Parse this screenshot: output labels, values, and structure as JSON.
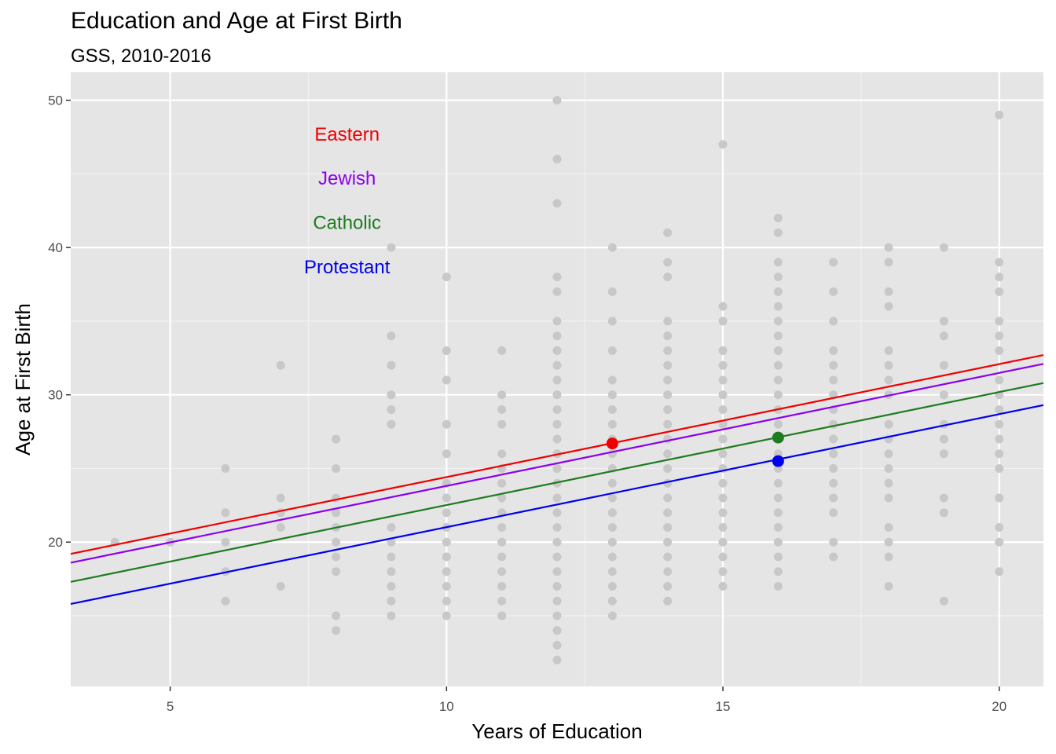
{
  "chart_data": {
    "type": "scatter",
    "title": "Education and Age at First Birth",
    "subtitle": "GSS, 2010-2016",
    "xlabel": "Years of Education",
    "ylabel": "Age at First Birth",
    "xlim": [
      3.2,
      20.8
    ],
    "ylim": [
      10.2,
      51.9
    ],
    "x_ticks": [
      5,
      10,
      15,
      20
    ],
    "y_ticks": [
      20,
      30,
      40,
      50
    ],
    "grid": true,
    "points": {
      "color": "#c8c8c8",
      "data": [
        {
          "x": 4,
          "y": [
            20
          ]
        },
        {
          "x": 5,
          "y": [
            20
          ]
        },
        {
          "x": 6,
          "y": [
            16,
            18,
            20,
            22,
            25
          ]
        },
        {
          "x": 7,
          "y": [
            17,
            21,
            22,
            23,
            32
          ]
        },
        {
          "x": 8,
          "y": [
            14,
            15,
            18,
            19,
            20,
            21,
            22,
            23,
            25,
            27
          ]
        },
        {
          "x": 9,
          "y": [
            15,
            16,
            17,
            18,
            19,
            20,
            21,
            28,
            29,
            30,
            32,
            34,
            40
          ]
        },
        {
          "x": 10,
          "y": [
            15,
            16,
            17,
            18,
            19,
            20,
            21,
            22,
            23,
            24,
            26,
            28,
            31,
            33,
            38
          ]
        },
        {
          "x": 11,
          "y": [
            15,
            16,
            17,
            18,
            19,
            20,
            21,
            22,
            23,
            24,
            25,
            26,
            28,
            29,
            30,
            33
          ]
        },
        {
          "x": 12,
          "y": [
            12,
            13,
            14,
            15,
            16,
            17,
            18,
            19,
            20,
            21,
            22,
            23,
            24,
            25,
            26,
            27,
            28,
            29,
            30,
            31,
            32,
            33,
            34,
            35,
            37,
            38,
            43,
            46,
            50
          ]
        },
        {
          "x": 13,
          "y": [
            15,
            16,
            17,
            18,
            19,
            20,
            21,
            22,
            23,
            24,
            25,
            26,
            27,
            28,
            29,
            30,
            31,
            33,
            35,
            37,
            40
          ]
        },
        {
          "x": 14,
          "y": [
            16,
            17,
            18,
            19,
            20,
            21,
            22,
            23,
            24,
            25,
            26,
            27,
            28,
            29,
            30,
            31,
            32,
            33,
            34,
            35,
            38,
            39,
            41
          ]
        },
        {
          "x": 15,
          "y": [
            17,
            18,
            19,
            20,
            21,
            22,
            23,
            24,
            25,
            26,
            27,
            28,
            29,
            30,
            31,
            32,
            33,
            35,
            36,
            47
          ]
        },
        {
          "x": 16,
          "y": [
            17,
            18,
            19,
            20,
            21,
            22,
            23,
            24,
            25,
            26,
            27,
            28,
            29,
            30,
            31,
            32,
            33,
            34,
            35,
            36,
            37,
            38,
            39,
            41,
            42
          ]
        },
        {
          "x": 17,
          "y": [
            19,
            20,
            22,
            23,
            24,
            25,
            26,
            27,
            28,
            29,
            30,
            31,
            32,
            33,
            35,
            37,
            39
          ]
        },
        {
          "x": 18,
          "y": [
            17,
            19,
            20,
            21,
            23,
            24,
            25,
            26,
            27,
            28,
            30,
            31,
            32,
            33,
            36,
            37,
            39,
            40
          ]
        },
        {
          "x": 19,
          "y": [
            16,
            22,
            23,
            26,
            27,
            28,
            30,
            32,
            34,
            35,
            40
          ]
        },
        {
          "x": 20,
          "y": [
            18,
            20,
            21,
            23,
            25,
            26,
            27,
            28,
            29,
            30,
            31,
            33,
            34,
            35,
            37,
            38,
            39,
            49
          ]
        }
      ]
    },
    "series": [
      {
        "name": "Eastern",
        "color": "#ee0000",
        "line": [
          [
            3.2,
            19.2
          ],
          [
            20.8,
            32.7
          ]
        ],
        "highlight": [
          13,
          26.7
        ]
      },
      {
        "name": "Jewish",
        "color": "#8b00ee",
        "line": [
          [
            3.2,
            18.6
          ],
          [
            20.8,
            32.1
          ]
        ],
        "highlight": null
      },
      {
        "name": "Catholic",
        "color": "#1e7c1e",
        "line": [
          [
            3.2,
            17.3
          ],
          [
            20.8,
            30.8
          ]
        ],
        "highlight": [
          16,
          27.1
        ]
      },
      {
        "name": "Protestant",
        "color": "#0000ee",
        "line": [
          [
            3.2,
            15.8
          ],
          [
            20.8,
            29.3
          ]
        ],
        "highlight": [
          16,
          25.5
        ]
      }
    ],
    "annotations": [
      {
        "text": "Eastern",
        "x": 8.2,
        "y": 47.6,
        "color": "#ee0000"
      },
      {
        "text": "Jewish",
        "x": 8.2,
        "y": 44.6,
        "color": "#8b00ee"
      },
      {
        "text": "Catholic",
        "x": 8.2,
        "y": 41.6,
        "color": "#1e7c1e"
      },
      {
        "text": "Protestant",
        "x": 8.2,
        "y": 38.6,
        "color": "#0000ee"
      }
    ]
  }
}
